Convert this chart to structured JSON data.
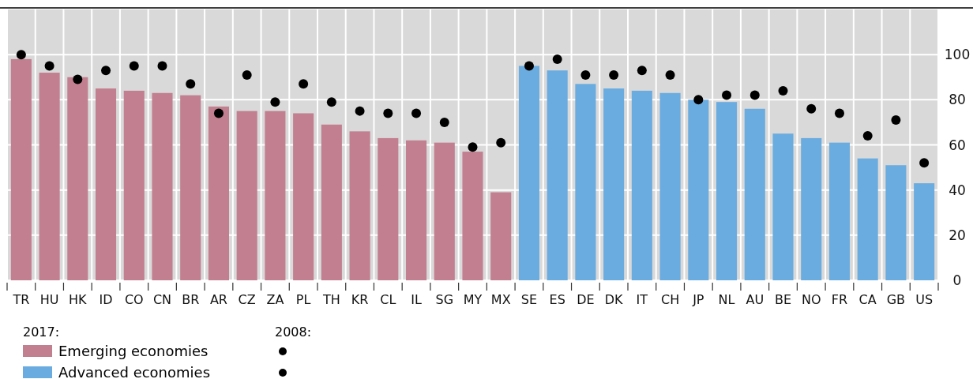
{
  "chart_data": {
    "type": "bar",
    "categories": [
      "TR",
      "HU",
      "HK",
      "ID",
      "CO",
      "CN",
      "BR",
      "AR",
      "CZ",
      "ZA",
      "PL",
      "TH",
      "KR",
      "CL",
      "IL",
      "SG",
      "MY",
      "MX",
      "SE",
      "ES",
      "DE",
      "DK",
      "IT",
      "CH",
      "JP",
      "NL",
      "AU",
      "BE",
      "NO",
      "FR",
      "CA",
      "GB",
      "US"
    ],
    "series": [
      {
        "name": "Emerging economies",
        "color": "#c27f8f",
        "values": [
          98,
          92,
          90,
          85,
          84,
          83,
          82,
          77,
          75,
          75,
          74,
          69,
          66,
          63,
          62,
          61,
          57,
          39,
          null,
          null,
          null,
          null,
          null,
          null,
          null,
          null,
          null,
          null,
          null,
          null,
          null,
          null,
          null
        ]
      },
      {
        "name": "Advanced economies",
        "color": "#6aace0",
        "values": [
          null,
          null,
          null,
          null,
          null,
          null,
          null,
          null,
          null,
          null,
          null,
          null,
          null,
          null,
          null,
          null,
          null,
          null,
          95,
          93,
          87,
          85,
          84,
          83,
          80,
          79,
          76,
          65,
          63,
          61,
          54,
          51,
          43
        ]
      },
      {
        "type": "scatter",
        "color": "#000000",
        "values": [
          100,
          95,
          89,
          93,
          95,
          95,
          87,
          74,
          91,
          79,
          87,
          79,
          75,
          74,
          74,
          70,
          59,
          61,
          null,
          null,
          null,
          null,
          null,
          null,
          null,
          null,
          null,
          null,
          null,
          null,
          null,
          null,
          null
        ]
      },
      {
        "type": "scatter",
        "color": "#000000",
        "values": [
          null,
          null,
          null,
          null,
          null,
          null,
          null,
          null,
          null,
          null,
          null,
          null,
          null,
          null,
          null,
          null,
          null,
          null,
          95,
          98,
          91,
          91,
          93,
          91,
          80,
          82,
          82,
          84,
          76,
          74,
          64,
          71,
          52
        ]
      }
    ],
    "ylim": [
      0,
      120
    ],
    "yticks": [
      0,
      20,
      40,
      60,
      80,
      100
    ],
    "grid": true,
    "legend": "bottom left",
    "marker": "circle",
    "legend_title": "2017:",
    "annotations": [
      "2008:"
    ]
  }
}
